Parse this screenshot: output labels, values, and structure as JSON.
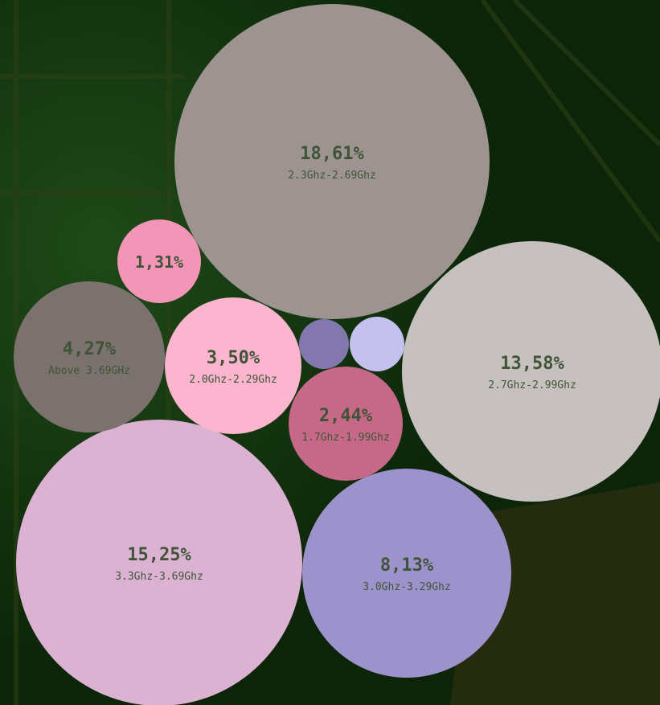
{
  "chart_data": {
    "type": "bubble",
    "value_format": "percent-comma",
    "colors": {
      "background": "#0f2a0c",
      "label_text": "#3f5436"
    },
    "items": [
      {
        "value": "18,61%",
        "category": "2.3Ghz-2.69Ghz",
        "color": "#9d9491"
      },
      {
        "value": "13,58%",
        "category": "2.7Ghz-2.99Ghz",
        "color": "#c6c1bf"
      },
      {
        "value": "15,25%",
        "category": "3.3Ghz-3.69Ghz",
        "color": "#dcb2d2"
      },
      {
        "value": "8,13%",
        "category": "3.0Ghz-3.29Ghz",
        "color": "#9d93cc"
      },
      {
        "value": "4,27%",
        "category": "Above 3.69GHz",
        "color": "#7b716e"
      },
      {
        "value": "3,50%",
        "category": "2.0Ghz-2.29Ghz",
        "color": "#fcb5cf"
      },
      {
        "value": "2,44%",
        "category": "1.7Ghz-1.99Ghz",
        "color": "#c66888"
      },
      {
        "value": "1,31%",
        "category": "",
        "color": "#f395b6"
      },
      {
        "value": "",
        "category": "",
        "color": "#8278ae"
      },
      {
        "value": "",
        "category": "",
        "color": "#c5c1ef"
      }
    ]
  }
}
